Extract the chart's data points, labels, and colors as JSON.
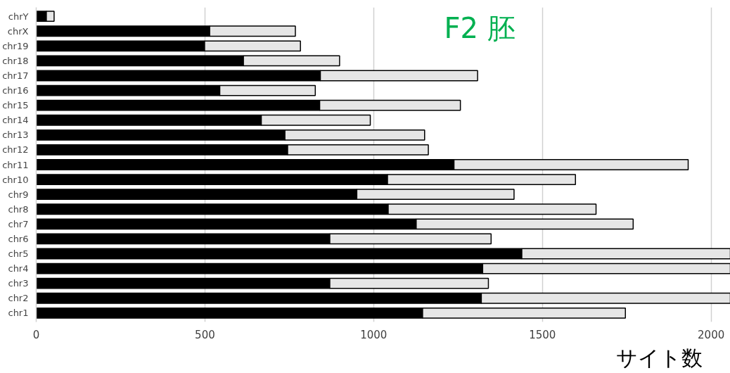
{
  "chart_data": {
    "type": "bar",
    "orientation": "horizontal",
    "stacked": true,
    "title": "F2 胚",
    "xlabel": "サイト数",
    "categories": [
      "chrY",
      "chrX",
      "chr19",
      "chr18",
      "chr17",
      "chr16",
      "chr15",
      "chr14",
      "chr13",
      "chr12",
      "chr11",
      "chr10",
      "chr9",
      "chr8",
      "chr7",
      "chr6",
      "chr5",
      "chr4",
      "chr3",
      "chr2",
      "chr1"
    ],
    "series": [
      {
        "color": "#000000",
        "values": [
          30,
          514,
          499,
          614,
          842,
          544,
          840,
          667,
          737,
          745,
          1238,
          1041,
          950,
          1043,
          1126,
          870,
          1439,
          1323,
          870,
          1319,
          1145
        ]
      },
      {
        "color": "#e6e6e6",
        "values": [
          23,
          254,
          284,
          285,
          466,
          283,
          417,
          323,
          414,
          417,
          694,
          557,
          466,
          616,
          643,
          478,
          618,
          734,
          470,
          738,
          601
        ]
      }
    ],
    "xlim": [
      0,
      2057
    ],
    "xticks": [
      0,
      500,
      1000,
      1500,
      2000
    ],
    "grid": "x"
  }
}
